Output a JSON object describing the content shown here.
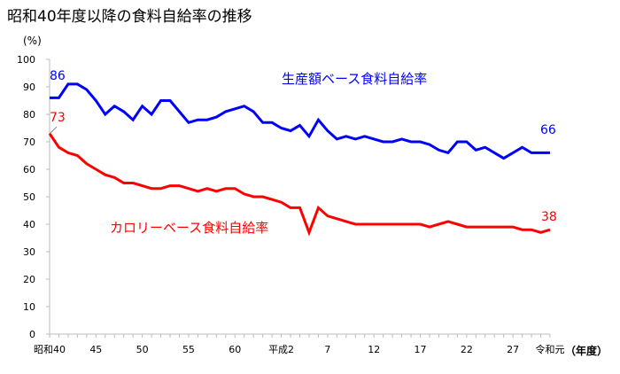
{
  "chart_data": {
    "type": "line",
    "title": "昭和40年度以降の食料自給率の推移",
    "ylabel": "(%)",
    "xlabel": "（年度）",
    "ylim": [
      0,
      100
    ],
    "yticks": [
      0,
      10,
      20,
      30,
      40,
      50,
      60,
      70,
      80,
      90,
      100
    ],
    "x": [
      1965,
      1966,
      1967,
      1968,
      1969,
      1970,
      1971,
      1972,
      1973,
      1974,
      1975,
      1976,
      1977,
      1978,
      1979,
      1980,
      1981,
      1982,
      1983,
      1984,
      1985,
      1986,
      1987,
      1988,
      1989,
      1990,
      1991,
      1992,
      1993,
      1994,
      1995,
      1996,
      1997,
      1998,
      1999,
      2000,
      2001,
      2002,
      2003,
      2004,
      2005,
      2006,
      2007,
      2008,
      2009,
      2010,
      2011,
      2012,
      2013,
      2014,
      2015,
      2016,
      2017,
      2018,
      2019
    ],
    "xtick_labels": [
      {
        "x": 1965,
        "label": "昭和40"
      },
      {
        "x": 1970,
        "label": "45"
      },
      {
        "x": 1975,
        "label": "50"
      },
      {
        "x": 1980,
        "label": "55"
      },
      {
        "x": 1985,
        "label": "60"
      },
      {
        "x": 1990,
        "label": "平成2"
      },
      {
        "x": 1995,
        "label": "7"
      },
      {
        "x": 2000,
        "label": "12"
      },
      {
        "x": 2005,
        "label": "17"
      },
      {
        "x": 2010,
        "label": "22"
      },
      {
        "x": 2015,
        "label": "27"
      },
      {
        "x": 2019,
        "label": "令和元"
      }
    ],
    "series": [
      {
        "name": "生産額ベース食料自給率",
        "color": "#0000ff",
        "start_label": "86",
        "end_label": "66",
        "values": [
          86,
          86,
          91,
          91,
          89,
          85,
          80,
          83,
          81,
          78,
          83,
          80,
          85,
          85,
          81,
          77,
          78,
          78,
          79,
          81,
          82,
          83,
          81,
          77,
          77,
          75,
          74,
          76,
          72,
          78,
          74,
          71,
          72,
          71,
          72,
          71,
          70,
          70,
          71,
          70,
          70,
          69,
          67,
          66,
          70,
          70,
          67,
          68,
          66,
          64,
          66,
          68,
          66,
          66,
          66
        ]
      },
      {
        "name": "カロリーベース食料自給率",
        "color": "#ff0000",
        "start_label": "73",
        "end_label": "38",
        "values": [
          73,
          68,
          66,
          65,
          62,
          60,
          58,
          57,
          55,
          55,
          54,
          53,
          53,
          54,
          54,
          53,
          52,
          53,
          52,
          53,
          53,
          51,
          50,
          50,
          49,
          48,
          46,
          46,
          37,
          46,
          43,
          42,
          41,
          40,
          40,
          40,
          40,
          40,
          40,
          40,
          40,
          39,
          40,
          41,
          40,
          39,
          39,
          39,
          39,
          39,
          39,
          38,
          38,
          37,
          38
        ]
      }
    ]
  }
}
